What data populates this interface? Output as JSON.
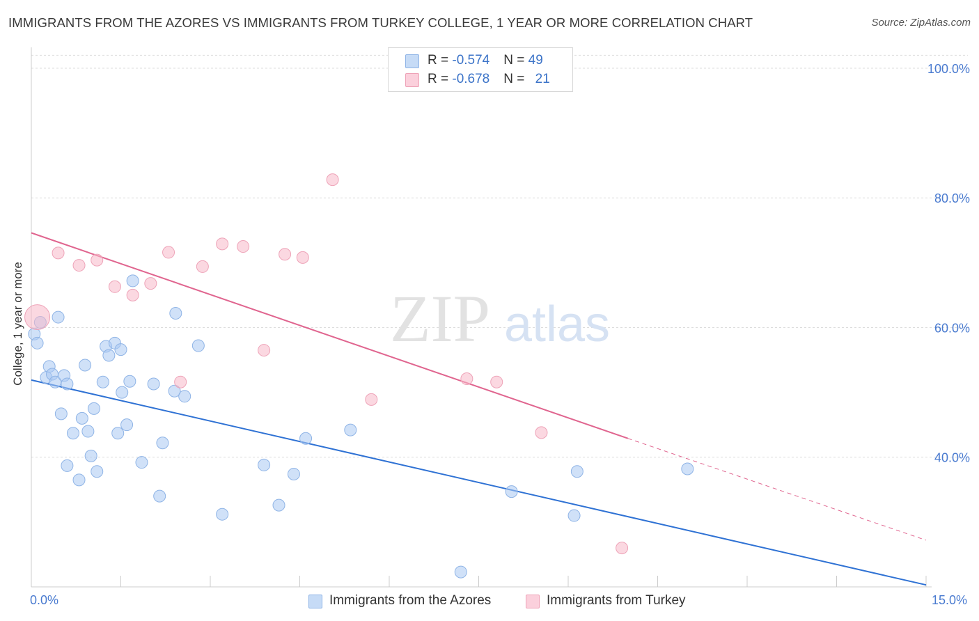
{
  "header": {
    "title": "IMMIGRANTS FROM THE AZORES VS IMMIGRANTS FROM TURKEY COLLEGE, 1 YEAR OR MORE CORRELATION CHART",
    "source": "Source: ZipAtlas.com"
  },
  "watermark": {
    "zip": "ZIP",
    "atlas": "atlas"
  },
  "legend": {
    "rows": [
      {
        "r_label": "R = ",
        "r_value": "-0.574",
        "n_label": "N = ",
        "n_value": "49",
        "color": "#a9c8f2"
      },
      {
        "r_label": "R = ",
        "r_value": "-0.678",
        "n_label": "N = ",
        "n_value": "21",
        "color": "#f7b8c9"
      }
    ]
  },
  "chart_data": {
    "type": "scatter",
    "title": "IMMIGRANTS FROM THE AZORES VS IMMIGRANTS FROM TURKEY COLLEGE, 1 YEAR OR MORE CORRELATION CHART",
    "xlabel": "",
    "ylabel": "College, 1 year or more",
    "xlim": [
      0,
      15
    ],
    "ylim": [
      20,
      103
    ],
    "x_tick_labels": [
      "0.0%",
      "15.0%"
    ],
    "y_ticks": [
      {
        "value": 100,
        "label": "100.0%"
      },
      {
        "value": 80,
        "label": "80.0%"
      },
      {
        "value": 60,
        "label": "60.0%"
      },
      {
        "value": 40,
        "label": "40.0%"
      }
    ],
    "grid": true,
    "legend_position": "top-center",
    "series": [
      {
        "name": "Immigrants from the Azores",
        "color": "#a9c8f2",
        "line_color": "#2f72d4",
        "trend": {
          "x": [
            0,
            15
          ],
          "y": [
            51.9,
            20.3
          ]
        },
        "points": [
          {
            "x": 0.05,
            "y": 59.0
          },
          {
            "x": 0.1,
            "y": 57.6
          },
          {
            "x": 0.15,
            "y": 60.8
          },
          {
            "x": 0.45,
            "y": 61.6
          },
          {
            "x": 0.25,
            "y": 52.3
          },
          {
            "x": 0.3,
            "y": 54.0
          },
          {
            "x": 0.35,
            "y": 52.8
          },
          {
            "x": 0.4,
            "y": 51.6
          },
          {
            "x": 0.55,
            "y": 52.6
          },
          {
            "x": 0.6,
            "y": 51.3
          },
          {
            "x": 0.5,
            "y": 46.7
          },
          {
            "x": 0.6,
            "y": 38.7
          },
          {
            "x": 0.7,
            "y": 43.7
          },
          {
            "x": 0.8,
            "y": 36.5
          },
          {
            "x": 0.85,
            "y": 46.0
          },
          {
            "x": 0.9,
            "y": 54.2
          },
          {
            "x": 0.95,
            "y": 44.0
          },
          {
            "x": 1.0,
            "y": 40.2
          },
          {
            "x": 1.05,
            "y": 47.5
          },
          {
            "x": 1.1,
            "y": 37.8
          },
          {
            "x": 1.2,
            "y": 51.6
          },
          {
            "x": 1.25,
            "y": 57.1
          },
          {
            "x": 1.3,
            "y": 55.7
          },
          {
            "x": 1.4,
            "y": 57.6
          },
          {
            "x": 1.45,
            "y": 43.7
          },
          {
            "x": 1.5,
            "y": 56.6
          },
          {
            "x": 1.52,
            "y": 50.0
          },
          {
            "x": 1.6,
            "y": 45.0
          },
          {
            "x": 1.65,
            "y": 51.7
          },
          {
            "x": 1.7,
            "y": 67.2
          },
          {
            "x": 1.85,
            "y": 39.2
          },
          {
            "x": 2.05,
            "y": 51.3
          },
          {
            "x": 2.15,
            "y": 34.0
          },
          {
            "x": 2.2,
            "y": 42.2
          },
          {
            "x": 2.4,
            "y": 50.2
          },
          {
            "x": 2.42,
            "y": 62.2
          },
          {
            "x": 2.57,
            "y": 49.4
          },
          {
            "x": 2.8,
            "y": 57.2
          },
          {
            "x": 3.2,
            "y": 31.2
          },
          {
            "x": 3.9,
            "y": 38.8
          },
          {
            "x": 4.15,
            "y": 32.6
          },
          {
            "x": 4.4,
            "y": 37.4
          },
          {
            "x": 4.6,
            "y": 42.9
          },
          {
            "x": 5.35,
            "y": 44.2
          },
          {
            "x": 7.2,
            "y": 22.3
          },
          {
            "x": 8.05,
            "y": 34.7
          },
          {
            "x": 9.1,
            "y": 31.0
          },
          {
            "x": 9.15,
            "y": 37.8
          },
          {
            "x": 11.0,
            "y": 38.2
          }
        ]
      },
      {
        "name": "Immigrants from Turkey",
        "color": "#f7b8c9",
        "line_color": "#e0658f",
        "trend": {
          "x": [
            0,
            10.0
          ],
          "y": [
            74.6,
            42.9
          ]
        },
        "trend_dashed": {
          "x": [
            10.0,
            15
          ],
          "y": [
            42.9,
            27.2
          ]
        },
        "points": [
          {
            "x": 0.1,
            "y": 61.6,
            "size": "large"
          },
          {
            "x": 0.45,
            "y": 71.5
          },
          {
            "x": 0.8,
            "y": 69.6
          },
          {
            "x": 1.1,
            "y": 70.4
          },
          {
            "x": 1.4,
            "y": 66.3
          },
          {
            "x": 1.7,
            "y": 65.0
          },
          {
            "x": 2.0,
            "y": 66.8
          },
          {
            "x": 2.3,
            "y": 71.6
          },
          {
            "x": 2.5,
            "y": 51.6
          },
          {
            "x": 2.87,
            "y": 69.4
          },
          {
            "x": 3.2,
            "y": 72.9
          },
          {
            "x": 3.55,
            "y": 72.5
          },
          {
            "x": 3.9,
            "y": 56.5
          },
          {
            "x": 4.25,
            "y": 71.3
          },
          {
            "x": 4.55,
            "y": 70.8
          },
          {
            "x": 5.05,
            "y": 82.8
          },
          {
            "x": 5.7,
            "y": 48.9
          },
          {
            "x": 7.3,
            "y": 52.1
          },
          {
            "x": 7.8,
            "y": 51.6
          },
          {
            "x": 8.55,
            "y": 43.8
          },
          {
            "x": 9.9,
            "y": 26.0
          }
        ]
      }
    ]
  }
}
